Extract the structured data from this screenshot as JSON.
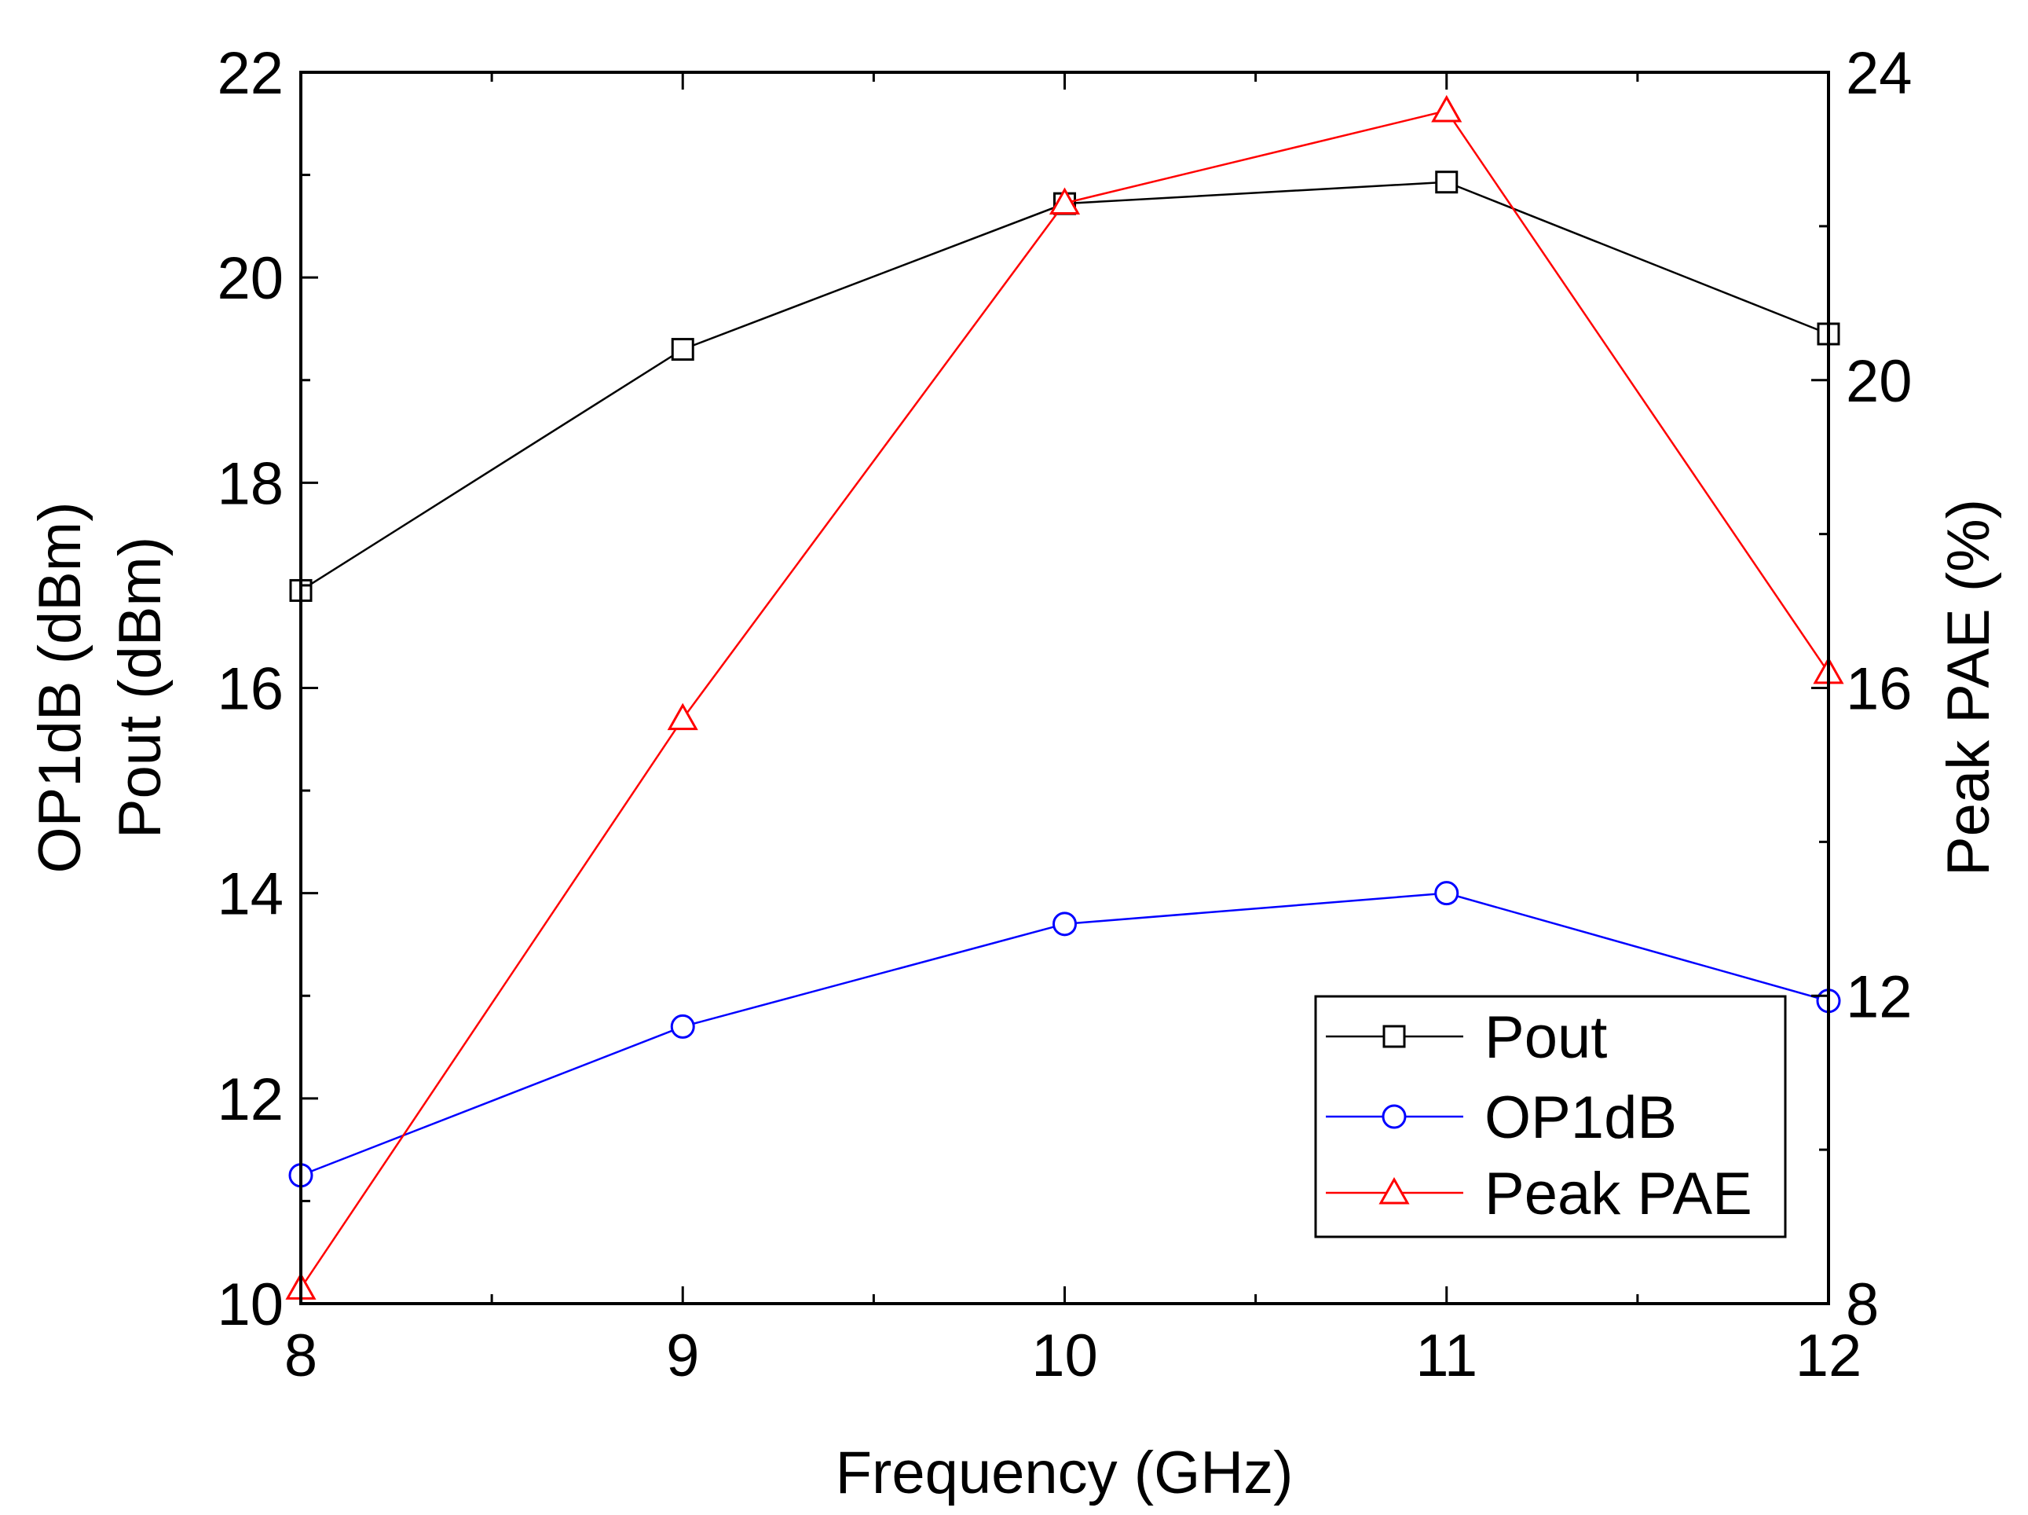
{
  "chart_data": {
    "type": "line",
    "title": "",
    "xlabel": "Frequency (GHz)",
    "ylabel_left_lines": [
      "OP1dB (dBm)",
      "Pout (dBm)"
    ],
    "ylabel_right": "Peak PAE (%)",
    "x": [
      8,
      9,
      10,
      11,
      12
    ],
    "xlim": [
      8,
      12
    ],
    "ylim_left": [
      10,
      22
    ],
    "ylim_right": [
      8,
      24
    ],
    "x_ticks": [
      "8",
      "9",
      "10",
      "11",
      "12"
    ],
    "y_left_ticks": [
      "10",
      "12",
      "14",
      "16",
      "18",
      "20",
      "22"
    ],
    "y_right_ticks": [
      "8",
      "12",
      "16",
      "20",
      "24"
    ],
    "grid": false,
    "legend_position": "bottom-right",
    "series": [
      {
        "name": "Pout",
        "axis": "left",
        "marker": "square",
        "color": "#000000",
        "values": [
          16.95,
          19.3,
          20.72,
          20.93,
          19.45
        ]
      },
      {
        "name": "OP1dB",
        "axis": "left",
        "marker": "circle",
        "color": "#0000ff",
        "values": [
          11.25,
          12.7,
          13.7,
          14.0,
          12.95
        ]
      },
      {
        "name": "Peak PAE",
        "axis": "right",
        "marker": "triangle",
        "color": "#ff0000",
        "values": [
          8.2,
          15.6,
          22.3,
          23.5,
          16.2
        ]
      }
    ]
  }
}
